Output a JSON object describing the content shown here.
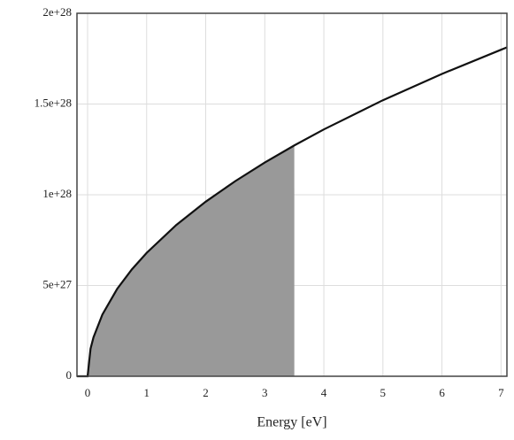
{
  "chart_data": {
    "type": "line",
    "x_label": "Energy [eV]",
    "xlim": [
      -0.18,
      7.1
    ],
    "ylim": [
      0,
      2e+28
    ],
    "xticks": [
      0,
      1,
      2,
      3,
      4,
      5,
      6,
      7
    ],
    "yticks": [
      0,
      {
        "value": 5e+27,
        "label": "5e+27"
      },
      {
        "value": 1e+28,
        "label": "1e+28"
      },
      {
        "value": 1.5e+28,
        "label": "1.5e+28"
      },
      {
        "value": 2e+28,
        "label": "2e+28"
      }
    ],
    "grid": true,
    "series": [
      {
        "kind": "area",
        "color": "#999999",
        "x": [
          0,
          0.05,
          0.1,
          0.25,
          0.5,
          0.75,
          1,
          1.5,
          2,
          2.5,
          3,
          3.5
        ],
        "values": [
          0,
          1.52e+27,
          2.15e+27,
          3.4e+27,
          4.81e+27,
          5.89e+27,
          6.8e+27,
          8.33e+27,
          9.62e+27,
          1.075e+28,
          1.178e+28,
          1.272e+28
        ]
      },
      {
        "kind": "line",
        "color": "#111111",
        "x": [
          -0.18,
          0,
          0.05,
          0.1,
          0.25,
          0.5,
          0.75,
          1,
          1.5,
          2,
          2.5,
          3,
          3.5,
          4,
          5,
          6,
          7,
          7.1
        ],
        "values": [
          0,
          0,
          1.52e+27,
          2.15e+27,
          3.4e+27,
          4.81e+27,
          5.89e+27,
          6.8e+27,
          8.33e+27,
          9.62e+27,
          1.075e+28,
          1.178e+28,
          1.272e+28,
          1.36e+28,
          1.521e+28,
          1.666e+28,
          1.799e+28,
          1.812e+28
        ]
      }
    ]
  }
}
